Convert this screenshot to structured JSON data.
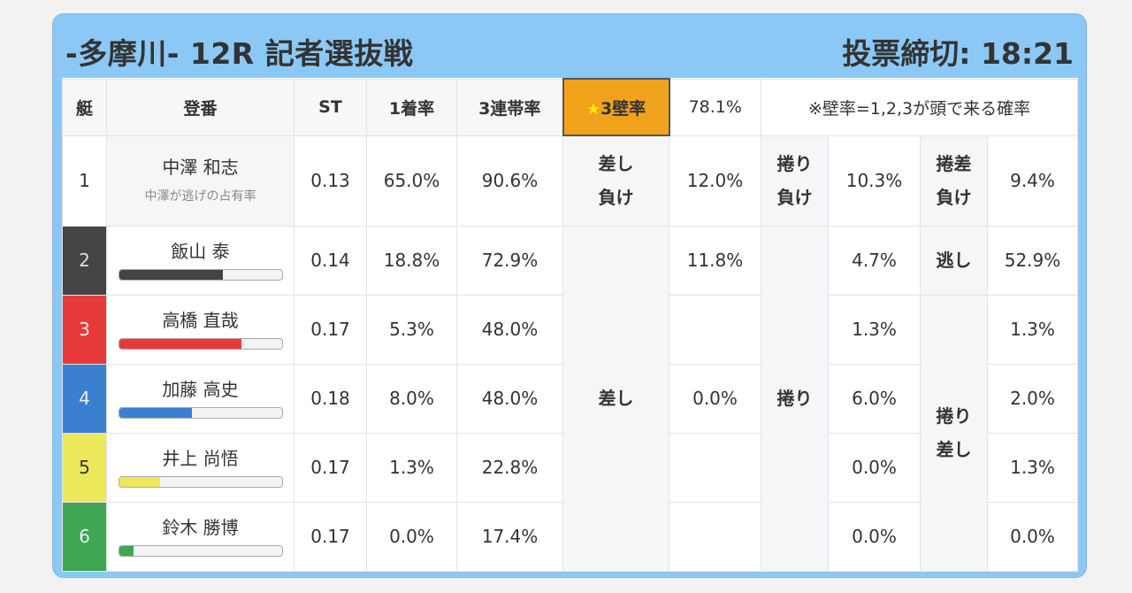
{
  "header": {
    "title": "-多摩川- 12R 記者選抜戦",
    "deadline": "投票締切: 18:21"
  },
  "columns": {
    "boat": "艇",
    "reg": "登番",
    "st": "ST",
    "first_rate": "1着率",
    "top3_rate": "3連帯率",
    "wall_star": "★",
    "wall_label": "3壁率",
    "wall_value": "78.1%",
    "wall_note": "※壁率=1,2,3が頭で来る確率"
  },
  "rows": [
    {
      "boat": "1",
      "name": "中澤 和志",
      "sub": "中澤が逃げの占有率",
      "st": "0.13",
      "first": "65.0%",
      "top3": "90.6%",
      "c2": "12.0%",
      "c3": "10.3%",
      "c4": "9.4%",
      "bar_color": "#ffffff",
      "bar_pct": 0
    },
    {
      "boat": "2",
      "name": "飯山 泰",
      "st": "0.14",
      "first": "18.8%",
      "top3": "72.9%",
      "c2": "11.8%",
      "c3": "4.7%",
      "c4": "52.9%",
      "bar_color": "#444444",
      "bar_pct": 64
    },
    {
      "boat": "3",
      "name": "高橋 直哉",
      "st": "0.17",
      "first": "5.3%",
      "top3": "48.0%",
      "c2": "",
      "c3": "1.3%",
      "c4": "1.3%",
      "bar_color": "#e63a3a",
      "bar_pct": 75
    },
    {
      "boat": "4",
      "name": "加藤 高史",
      "st": "0.18",
      "first": "8.0%",
      "top3": "48.0%",
      "c2": "0.0%",
      "c3": "6.0%",
      "c4": "2.0%",
      "bar_color": "#3b7fd1",
      "bar_pct": 45
    },
    {
      "boat": "5",
      "name": "井上 尚悟",
      "st": "0.17",
      "first": "1.3%",
      "top3": "22.8%",
      "c2": "",
      "c3": "0.0%",
      "c4": "1.3%",
      "bar_color": "#eee95a",
      "bar_pct": 25
    },
    {
      "boat": "6",
      "name": "鈴木 勝博",
      "st": "0.17",
      "first": "0.0%",
      "top3": "17.4%",
      "c2": "",
      "c3": "0.0%",
      "c4": "0.0%",
      "bar_color": "#3fa653",
      "bar_pct": 9
    }
  ],
  "labels": {
    "sashi_make_1": "差し",
    "sashi_make_2": "負け",
    "makuri_make_1": "捲り",
    "makuri_make_2": "負け",
    "makusashi_make_1": "捲差",
    "makusashi_make_2": "負け",
    "nige": "逃し",
    "sashi": "差し",
    "makuri": "捲り",
    "makuri_sashi_1": "捲り",
    "makuri_sashi_2": "差し"
  }
}
